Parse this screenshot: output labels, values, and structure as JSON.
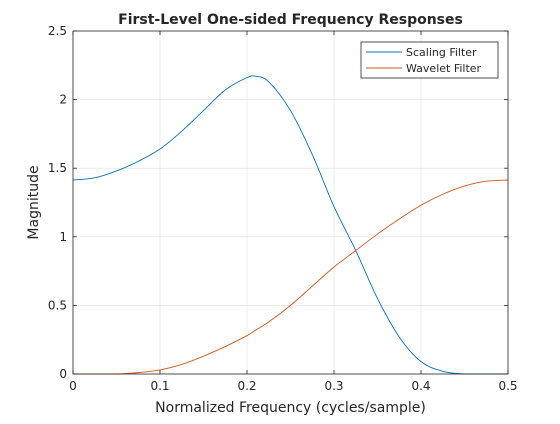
{
  "chart_data": {
    "type": "line",
    "title": "First-Level One-sided Frequency Responses",
    "xlabel": "Normalized Frequency (cycles/sample)",
    "ylabel": "Magnitude",
    "xlim": [
      0,
      0.5
    ],
    "ylim": [
      0,
      2.5
    ],
    "grid": true,
    "legend_position": "top-right",
    "x_ticks": [
      "0",
      "0.1",
      "0.2",
      "0.3",
      "0.4",
      "0.5"
    ],
    "y_ticks": [
      "0",
      "0.5",
      "1",
      "1.5",
      "2",
      "2.5"
    ],
    "x": [
      0,
      0.025,
      0.05,
      0.075,
      0.1,
      0.125,
      0.15,
      0.175,
      0.2,
      0.21,
      0.225,
      0.25,
      0.275,
      0.3,
      0.325,
      0.35,
      0.375,
      0.4,
      0.425,
      0.45,
      0.475,
      0.5
    ],
    "series": [
      {
        "name": "Scaling Filter",
        "color": "#0072BD",
        "values": [
          1.414,
          1.43,
          1.48,
          1.55,
          1.64,
          1.77,
          1.92,
          2.07,
          2.16,
          2.17,
          2.13,
          1.92,
          1.6,
          1.22,
          0.9,
          0.55,
          0.27,
          0.09,
          0.02,
          0.0,
          0.0,
          0.0
        ]
      },
      {
        "name": "Wavelet Filter",
        "color": "#D95319",
        "values": [
          0.0,
          0.0,
          0.0,
          0.01,
          0.03,
          0.07,
          0.13,
          0.2,
          0.28,
          0.32,
          0.38,
          0.5,
          0.64,
          0.78,
          0.9,
          1.02,
          1.13,
          1.23,
          1.31,
          1.37,
          1.405,
          1.414
        ]
      }
    ]
  }
}
